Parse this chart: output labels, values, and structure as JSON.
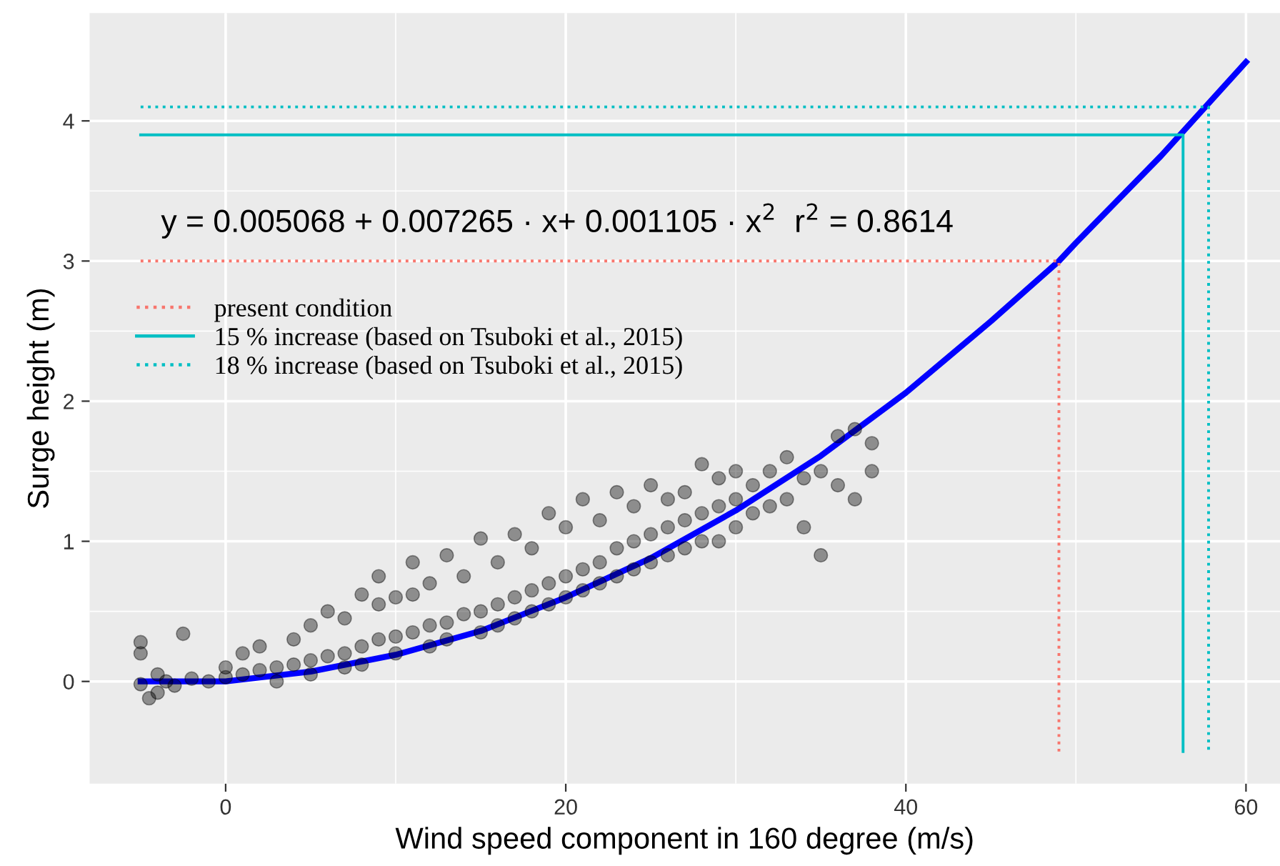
{
  "chart_data": {
    "type": "scatter",
    "xlabel": "Wind speed component in 160 degree (m/s)",
    "ylabel": "Surge height (m)",
    "xlim": [
      -8,
      62
    ],
    "ylim": [
      -0.73,
      4.77
    ],
    "xticks": [
      0,
      20,
      40,
      60
    ],
    "yticks": [
      0,
      1,
      2,
      3,
      4
    ],
    "grid": true,
    "legend": "top left",
    "marker": "circle",
    "annotations": [
      "y = 0.005068 + 0.007265 · x+ 0.001105 · x$^{2}$  r$^{2}$ = 0.8614"
    ],
    "series": [
      {
        "type": "line",
        "color": "#0000ff",
        "line_style": "solid",
        "marker": "none",
        "x": [
          -5,
          0,
          5,
          10,
          15,
          20,
          25,
          30,
          35,
          40,
          45,
          49,
          50,
          55,
          60
        ],
        "values": [
          0.0,
          0.0,
          0.07,
          0.19,
          0.36,
          0.6,
          0.88,
          1.22,
          1.61,
          2.06,
          2.57,
          3.0,
          3.13,
          3.75,
          4.42
        ]
      },
      {
        "color": "#000000",
        "x": [
          -5,
          -5,
          -5,
          -4.5,
          -4,
          -4,
          -3.5,
          -2.5,
          -3,
          -2,
          -1,
          0,
          0,
          1,
          1,
          2,
          2,
          3,
          3,
          4,
          4,
          5,
          5,
          5,
          6,
          6,
          7,
          7,
          7,
          8,
          8,
          8,
          9,
          9,
          9,
          10,
          10,
          10,
          11,
          11,
          11,
          12,
          12,
          12,
          13,
          13,
          13,
          14,
          14,
          15,
          15,
          15,
          16,
          16,
          16,
          17,
          17,
          17,
          18,
          18,
          18,
          19,
          19,
          19,
          20,
          20,
          20,
          21,
          21,
          21,
          22,
          22,
          22,
          23,
          23,
          23,
          24,
          24,
          24,
          25,
          25,
          25,
          26,
          26,
          26,
          27,
          27,
          27,
          28,
          28,
          28,
          29,
          29,
          29,
          30,
          30,
          30,
          31,
          31,
          32,
          32,
          33,
          33,
          34,
          34,
          35,
          35,
          36,
          36,
          37,
          37,
          38,
          38
        ],
        "values": [
          -0.02,
          0.28,
          0.2,
          -0.12,
          -0.08,
          0.05,
          0.0,
          0.34,
          -0.03,
          0.02,
          0.0,
          0.03,
          0.1,
          0.05,
          0.2,
          0.08,
          0.25,
          0.1,
          0.0,
          0.12,
          0.3,
          0.15,
          0.4,
          0.05,
          0.18,
          0.5,
          0.2,
          0.45,
          0.1,
          0.25,
          0.62,
          0.12,
          0.3,
          0.75,
          0.55,
          0.32,
          0.6,
          0.2,
          0.35,
          0.85,
          0.62,
          0.4,
          0.7,
          0.25,
          0.42,
          0.9,
          0.3,
          0.48,
          0.75,
          0.5,
          1.02,
          0.35,
          0.55,
          0.85,
          0.4,
          0.6,
          1.05,
          0.45,
          0.65,
          0.95,
          0.5,
          0.7,
          1.2,
          0.55,
          0.75,
          1.1,
          0.6,
          0.8,
          1.3,
          0.65,
          0.85,
          1.15,
          0.7,
          0.95,
          1.35,
          0.75,
          1.0,
          1.25,
          0.8,
          1.05,
          1.4,
          0.85,
          1.1,
          1.3,
          0.9,
          1.15,
          1.35,
          0.95,
          1.2,
          1.55,
          1.0,
          1.25,
          1.45,
          1.0,
          1.3,
          1.5,
          1.1,
          1.4,
          1.2,
          1.5,
          1.25,
          1.6,
          1.3,
          1.45,
          1.1,
          1.5,
          0.9,
          1.75,
          1.4,
          1.8,
          1.3,
          1.7,
          1.5
        ]
      },
      {
        "type": "line",
        "name": "present condition",
        "color": "#f8766d",
        "line_style": "dotted",
        "marker": "none",
        "x": [
          -5,
          49,
          49
        ],
        "values": [
          3,
          3,
          -0.5
        ]
      },
      {
        "type": "line",
        "name": "15 % increase (based on Tsuboki et al., 2015)",
        "color": "#00bfc4",
        "line_style": "solid",
        "marker": "none",
        "x": [
          -5,
          56.3,
          56.3
        ],
        "values": [
          3.9,
          3.9,
          -0.5
        ]
      },
      {
        "type": "line",
        "name": "18 % increase (based on Tsuboki et al., 2015)",
        "color": "#00bfc4",
        "line_style": "dotted",
        "marker": "none",
        "x": [
          -5,
          57.8,
          57.8
        ],
        "values": [
          4.1,
          4.1,
          -0.5
        ]
      }
    ]
  }
}
